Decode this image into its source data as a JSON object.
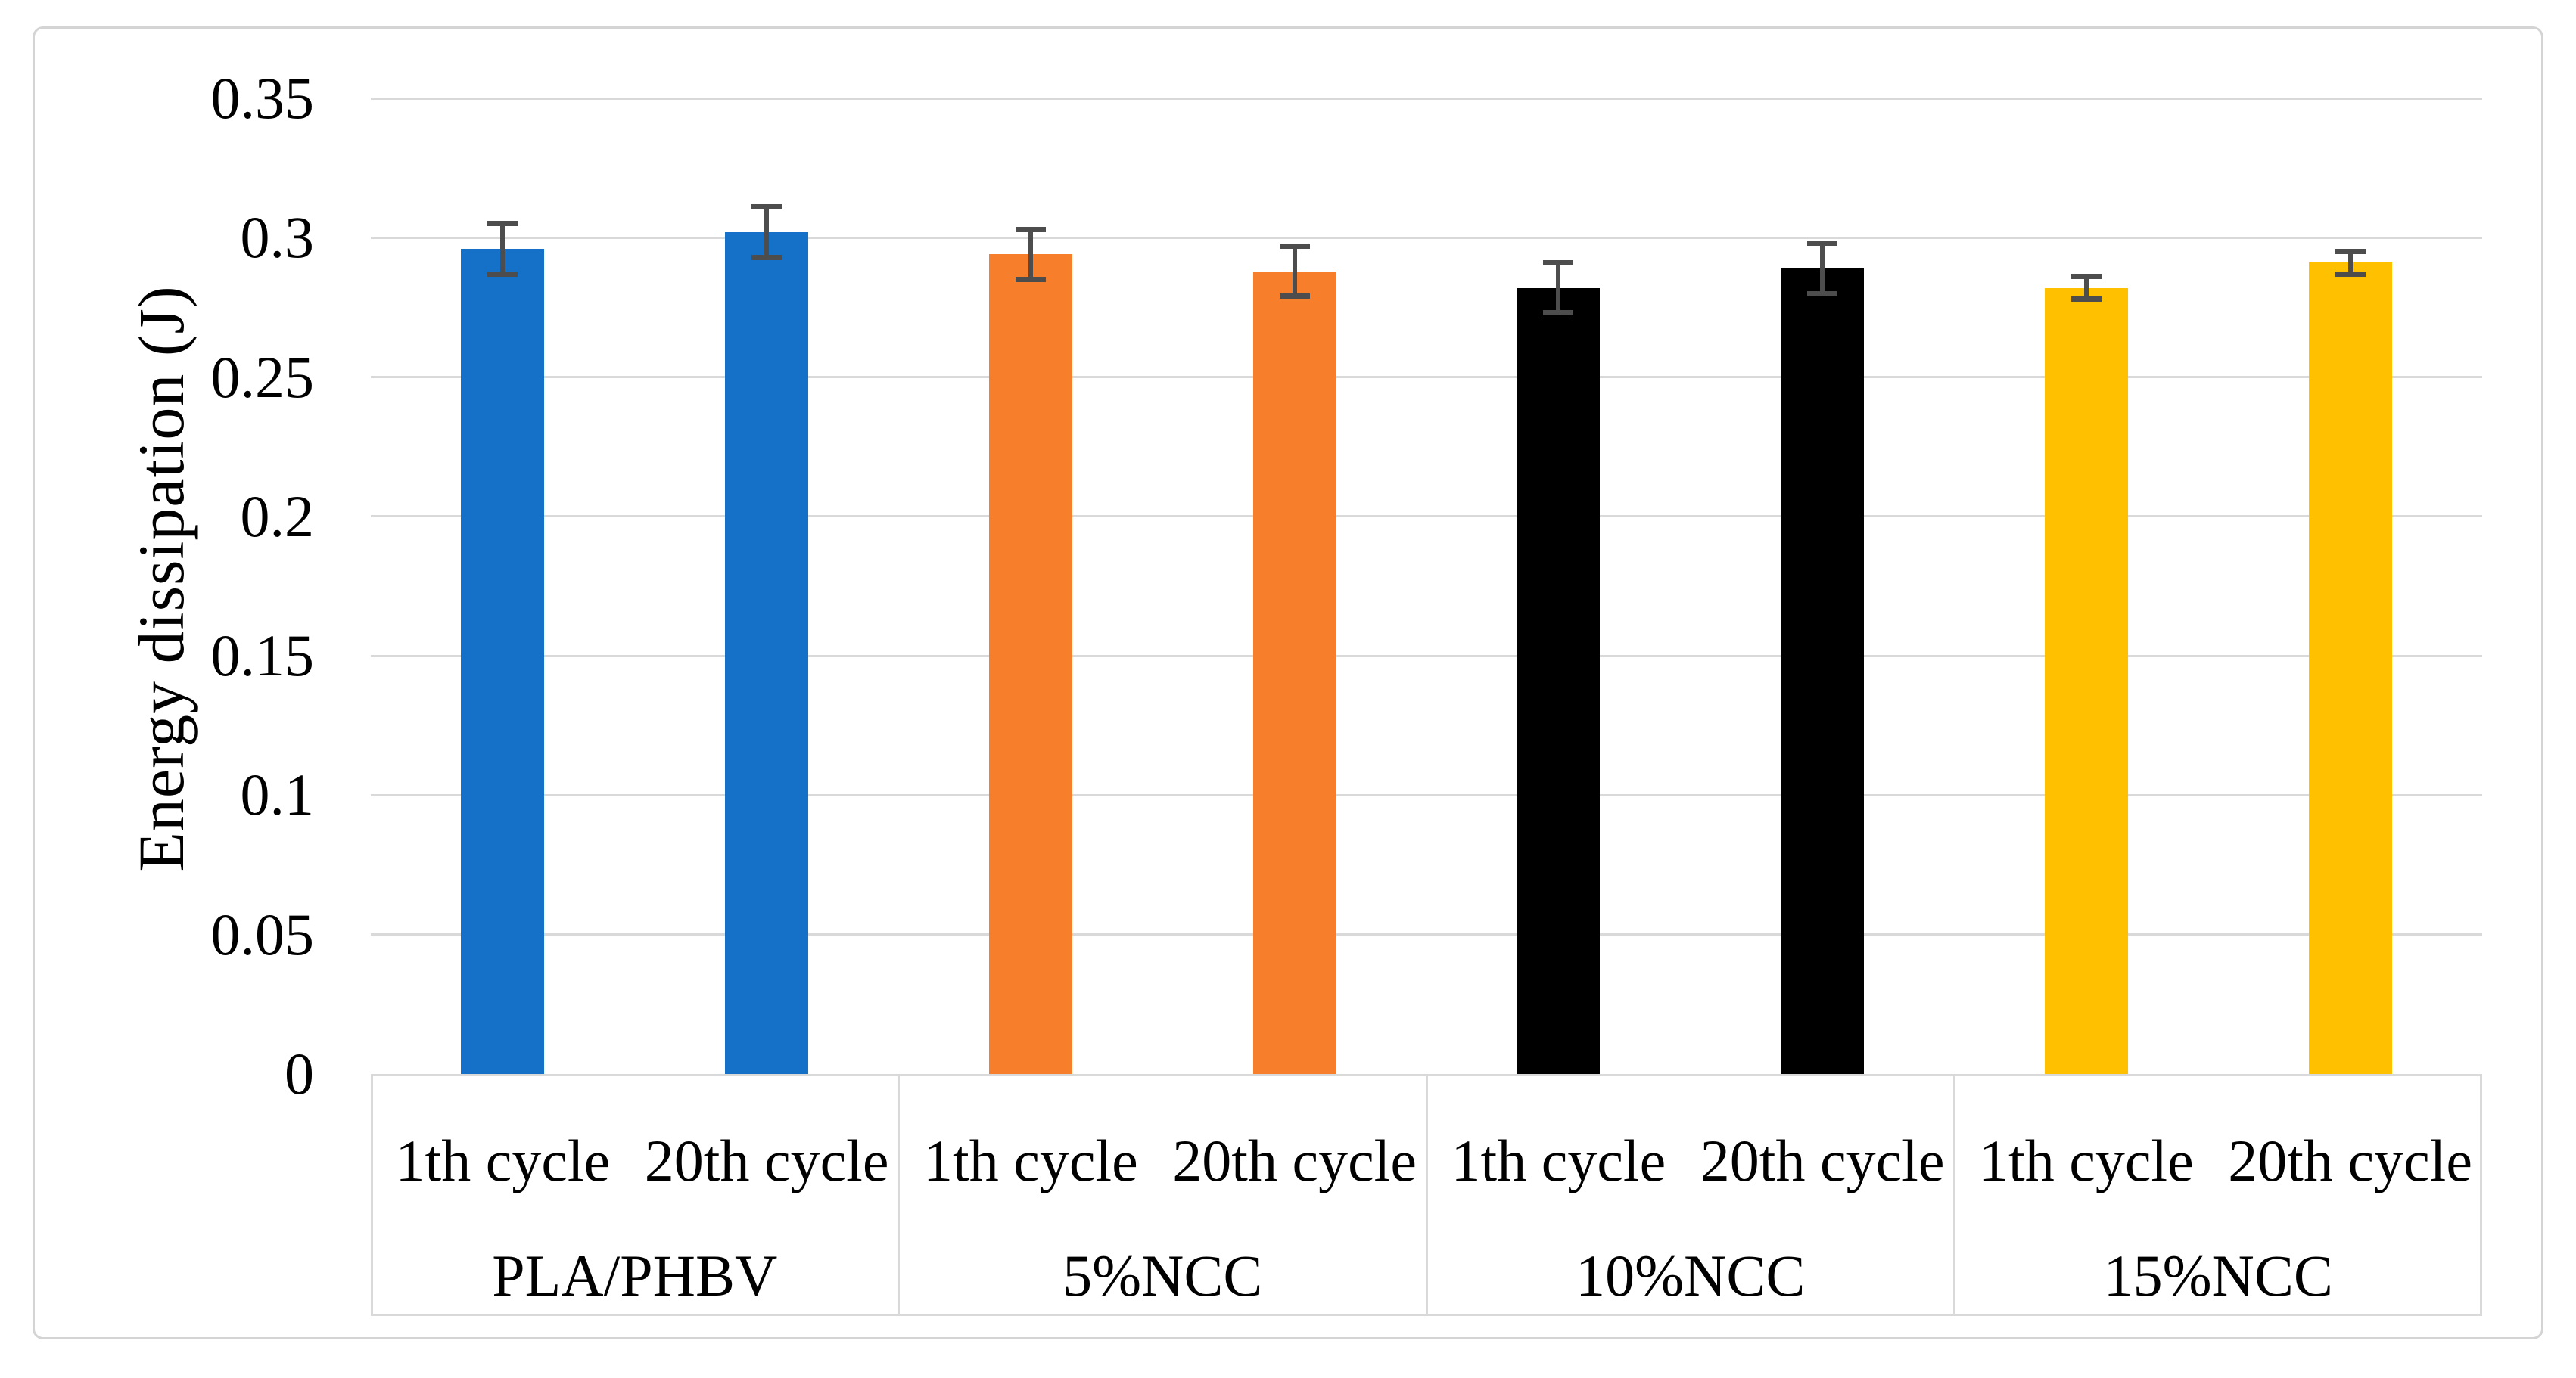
{
  "figure": {
    "background": "#FFFFFF",
    "border_color": "#D4D4D4"
  },
  "chart_data": {
    "type": "bar",
    "title": "",
    "xlabel": "",
    "ylabel": "Energy dissipation (J)",
    "ylim": [
      0,
      0.35
    ],
    "grid": true,
    "legend_position": "none",
    "yticks": [
      {
        "label": "0.35",
        "value": 0.35
      },
      {
        "label": "0.3",
        "value": 0.3
      },
      {
        "label": "0.25",
        "value": 0.25
      },
      {
        "label": "0.2",
        "value": 0.2
      },
      {
        "label": "0.15",
        "value": 0.15
      },
      {
        "label": "0.1",
        "value": 0.1
      },
      {
        "label": "0.05",
        "value": 0.05
      },
      {
        "label": "0",
        "value": 0
      }
    ],
    "series_labels": [
      "1th cycle",
      "20th cycle"
    ],
    "groups": [
      {
        "label": "PLA/PHBV",
        "color": "#1571C7",
        "bars": [
          {
            "series": "1th cycle",
            "value": 0.296,
            "error": 0.009
          },
          {
            "series": "20th cycle",
            "value": 0.302,
            "error": 0.009
          }
        ]
      },
      {
        "label": "5%NCC",
        "color": "#F77E2B",
        "bars": [
          {
            "series": "1th cycle",
            "value": 0.294,
            "error": 0.009
          },
          {
            "series": "20th cycle",
            "value": 0.288,
            "error": 0.009
          }
        ]
      },
      {
        "label": "10%NCC",
        "color": "#000000",
        "bars": [
          {
            "series": "1th cycle",
            "value": 0.282,
            "error": 0.009
          },
          {
            "series": "20th cycle",
            "value": 0.289,
            "error": 0.009
          }
        ]
      },
      {
        "label": "15%NCC",
        "color": "#FFC000",
        "bars": [
          {
            "series": "1th cycle",
            "value": 0.282,
            "error": 0.004
          },
          {
            "series": "20th cycle",
            "value": 0.291,
            "error": 0.004
          }
        ]
      }
    ],
    "colors": {
      "gridline": "#D9D9D9",
      "error_bar": "#4D4D4D",
      "category_box": "#D9D9D9",
      "text": "#000000"
    }
  }
}
